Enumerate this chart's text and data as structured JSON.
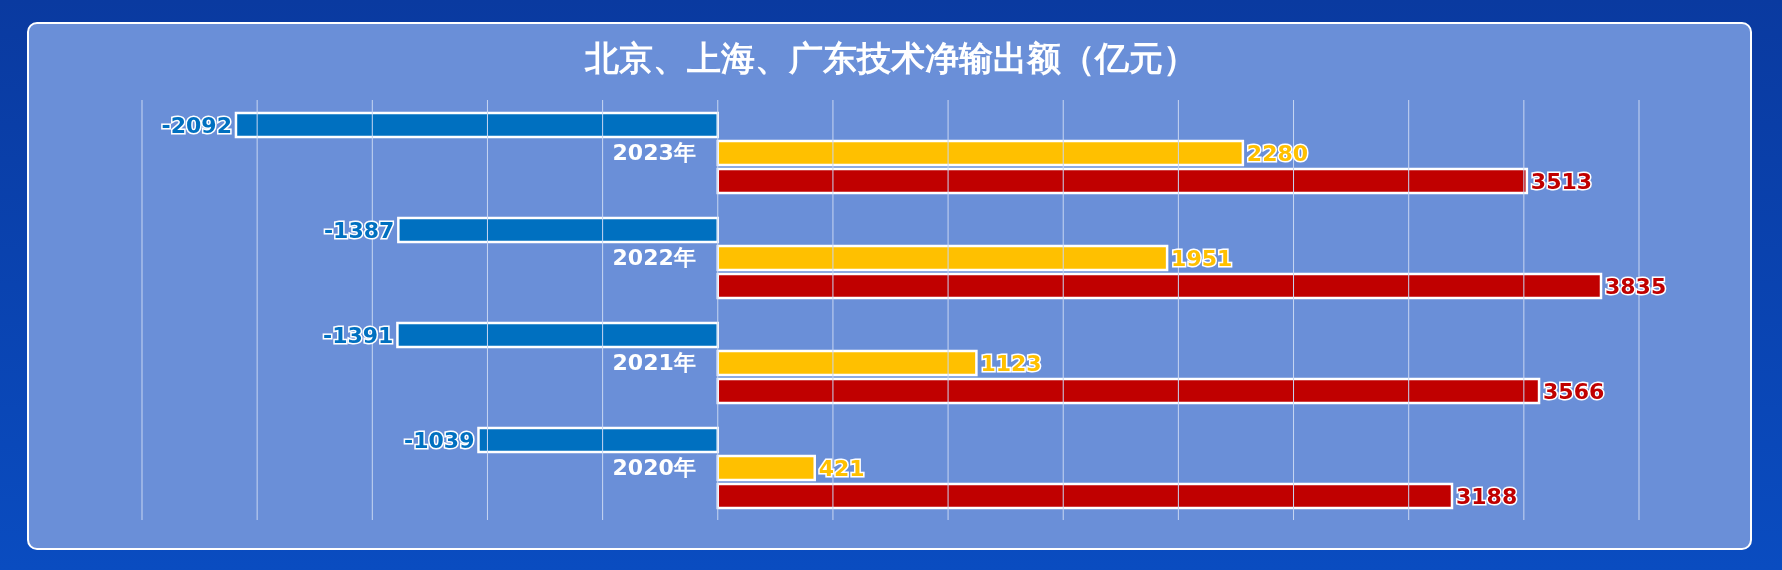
{
  "chart_data": {
    "type": "bar",
    "orientation": "horizontal",
    "title": "北京、上海、广东技术净输出额（亿元）",
    "categories": [
      "2023年",
      "2022年",
      "2021年",
      "2020年"
    ],
    "series": [
      {
        "color": "#0070c0",
        "values": [
          -2092,
          -1387,
          -1391,
          -1039
        ]
      },
      {
        "color": "#ffc000",
        "values": [
          2280,
          1951,
          1123,
          421
        ]
      },
      {
        "color": "#c00000",
        "values": [
          3513,
          3835,
          3566,
          3188
        ]
      }
    ],
    "xlim": [
      -2500,
      4000
    ],
    "xticks": [
      {
        "value": -2500,
        "label": null
      },
      {
        "value": -2000,
        "label": null
      },
      {
        "value": -1500,
        "label": null
      },
      {
        "value": -1000,
        "label": null
      },
      {
        "value": -500,
        "label": null
      },
      {
        "value": 0,
        "label": null
      },
      {
        "value": 500,
        "label": null
      },
      {
        "value": 1000,
        "label": null
      },
      {
        "value": 1500,
        "label": null
      },
      {
        "value": 2000,
        "label": null
      },
      {
        "value": 2500,
        "label": null
      },
      {
        "value": 3000,
        "label": null
      },
      {
        "value": 3500,
        "label": null
      },
      {
        "value": 4000,
        "label": null
      }
    ],
    "tick_labels": "y",
    "grid": "x",
    "data_labels": true,
    "legend": false
  }
}
